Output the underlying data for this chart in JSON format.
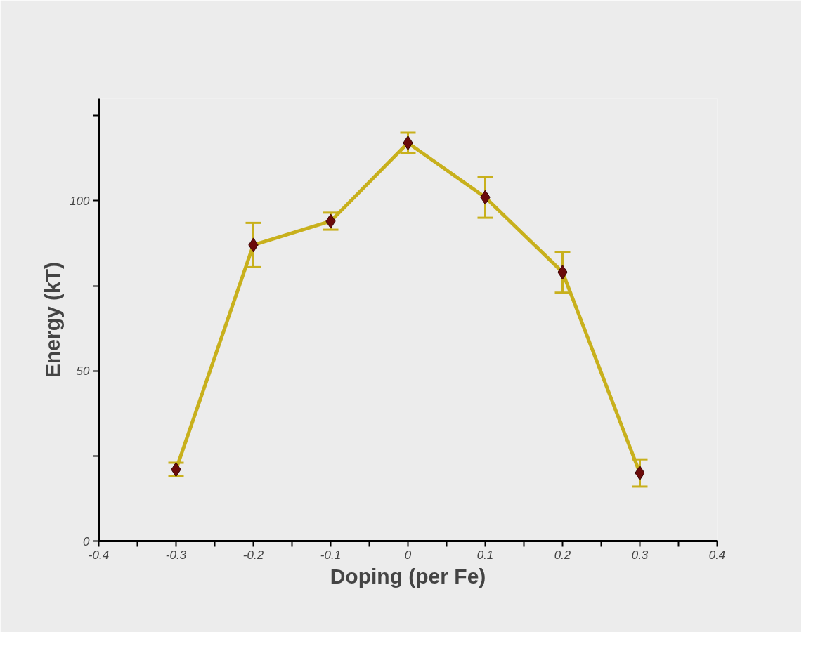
{
  "chart_data": {
    "type": "line",
    "xlabel": "Doping (per Fe)",
    "ylabel": "Energy (kT)",
    "x": [
      -0.3,
      -0.2,
      -0.1,
      0,
      0.1,
      0.2,
      0.3
    ],
    "series": [
      {
        "color": "#c8b01c",
        "values": [
          21,
          87,
          94,
          117,
          101,
          79,
          20
        ],
        "errors": [
          2,
          6.5,
          2.5,
          3,
          6,
          6,
          4
        ]
      }
    ],
    "marker": "diamond",
    "line_style": "solid",
    "grid": false,
    "xlim": [
      -0.4,
      0.4
    ],
    "ylim": [
      0,
      130
    ],
    "xticks": [
      -0.4,
      {
        "value": -0.35,
        "label": null
      },
      -0.3,
      {
        "value": -0.25,
        "label": null
      },
      -0.2,
      {
        "value": -0.15,
        "label": null
      },
      -0.1,
      {
        "value": -0.05,
        "label": null
      },
      0,
      {
        "value": 0.05,
        "label": null
      },
      0.1,
      {
        "value": 0.15,
        "label": null
      },
      0.2,
      {
        "value": 0.25,
        "label": null
      },
      0.3,
      {
        "value": 0.35,
        "label": null
      },
      0.4
    ],
    "yticks": [
      0,
      {
        "value": 25,
        "label": null
      },
      50,
      {
        "value": 75,
        "label": null
      },
      100,
      {
        "value": 125,
        "label": null
      }
    ]
  }
}
